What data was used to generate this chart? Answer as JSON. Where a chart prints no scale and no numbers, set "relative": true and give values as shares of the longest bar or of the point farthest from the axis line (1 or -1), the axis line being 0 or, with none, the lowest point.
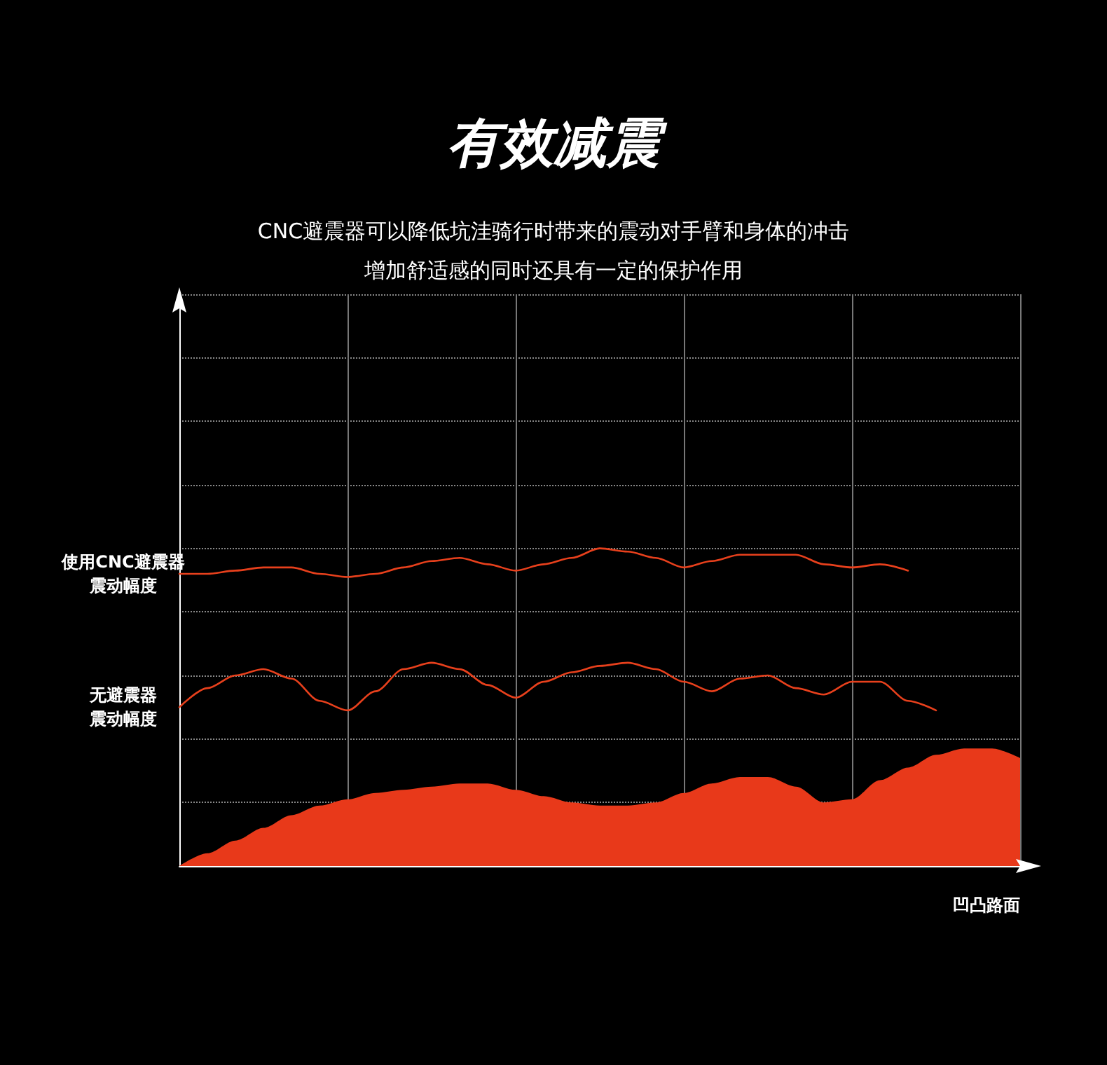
{
  "chart_data": {
    "type": "line",
    "title": "有效减震",
    "subtitle": "CNC避震器可以降低坑洼骑行时带来的震动对手臂和身体的冲击增加舒适感的同时还具有一定的保护作用",
    "xlabel": "凹凸路面",
    "relative": true,
    "grid": true,
    "legend": false,
    "marker": "none",
    "line_style": "solid",
    "categories": [
      null,
      null,
      null,
      null,
      null,
      null,
      null,
      null,
      null,
      null,
      null,
      null,
      null,
      null,
      null,
      null,
      null,
      null,
      null,
      null,
      null,
      null,
      null,
      null,
      null,
      null,
      null,
      null,
      null,
      null,
      null
    ],
    "series": [
      {
        "name": "使用CNC避震器震动幅度",
        "color": "#e8401c",
        "values": [
          0.92,
          0.92,
          0.93,
          0.94,
          0.94,
          0.92,
          0.91,
          0.92,
          0.94,
          0.96,
          0.97,
          0.95,
          0.93,
          0.95,
          0.97,
          1.0,
          0.99,
          0.97,
          0.94,
          0.96,
          0.98,
          0.98,
          0.98,
          0.95,
          0.94,
          0.95,
          0.93,
          null,
          null,
          null,
          null
        ]
      },
      {
        "name": "无避震器震动幅度",
        "color": "#e8401c",
        "values": [
          0.5,
          0.56,
          0.6,
          0.62,
          0.59,
          0.52,
          0.49,
          0.55,
          0.62,
          0.64,
          0.62,
          0.57,
          0.53,
          0.58,
          0.61,
          0.63,
          0.64,
          0.62,
          0.58,
          0.55,
          0.59,
          0.6,
          0.56,
          0.54,
          0.58,
          0.58,
          0.52,
          0.49,
          null,
          null,
          null
        ]
      },
      {
        "type": "area",
        "color": "#e8391a",
        "values": [
          0,
          0.04,
          0.08,
          0.12,
          0.16,
          0.19,
          0.21,
          0.23,
          0.24,
          0.25,
          0.26,
          0.26,
          0.24,
          0.22,
          0.2,
          0.19,
          0.19,
          0.2,
          0.23,
          0.26,
          0.28,
          0.28,
          0.25,
          0.2,
          0.21,
          0.27,
          0.31,
          0.35,
          0.37,
          0.37,
          0.34
        ]
      }
    ]
  }
}
